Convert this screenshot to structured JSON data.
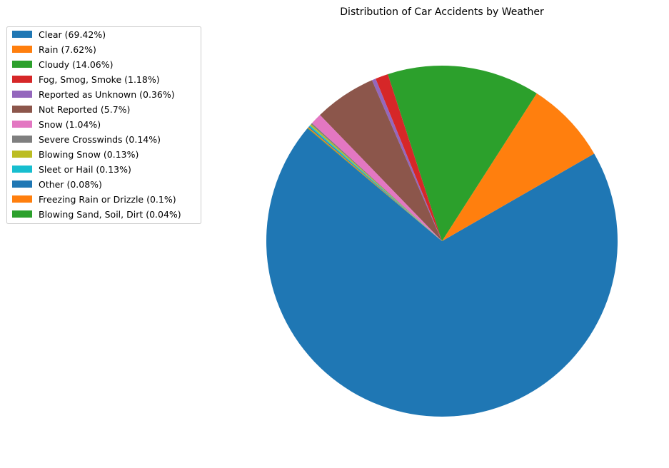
{
  "chart_data": {
    "type": "pie",
    "title": "Distribution of Car Accidents by Weather",
    "start_angle_deg": 140,
    "direction": "counterclockwise",
    "legend_position": "upper-left, outside",
    "slices": [
      {
        "label": "Clear (69.42%)",
        "value": 69.42,
        "color": "#1f77b4"
      },
      {
        "label": "Rain (7.62%)",
        "value": 7.62,
        "color": "#ff7f0e"
      },
      {
        "label": "Cloudy (14.06%)",
        "value": 14.06,
        "color": "#2ca02c"
      },
      {
        "label": "Fog, Smog, Smoke (1.18%)",
        "value": 1.18,
        "color": "#d62728"
      },
      {
        "label": "Reported as Unknown (0.36%)",
        "value": 0.36,
        "color": "#9467bd"
      },
      {
        "label": "Not Reported (5.7%)",
        "value": 5.7,
        "color": "#8c564b"
      },
      {
        "label": "Snow (1.04%)",
        "value": 1.04,
        "color": "#e377c2"
      },
      {
        "label": "Severe Crosswinds (0.14%)",
        "value": 0.14,
        "color": "#7f7f7f"
      },
      {
        "label": "Blowing Snow (0.13%)",
        "value": 0.13,
        "color": "#bcbd22"
      },
      {
        "label": "Sleet or Hail (0.13%)",
        "value": 0.13,
        "color": "#17becf"
      },
      {
        "label": "Other (0.08%)",
        "value": 0.08,
        "color": "#1f77b4"
      },
      {
        "label": "Freezing Rain or Drizzle (0.1%)",
        "value": 0.1,
        "color": "#ff7f0e"
      },
      {
        "label": "Blowing Sand, Soil, Dirt (0.04%)",
        "value": 0.04,
        "color": "#2ca02c"
      }
    ]
  }
}
